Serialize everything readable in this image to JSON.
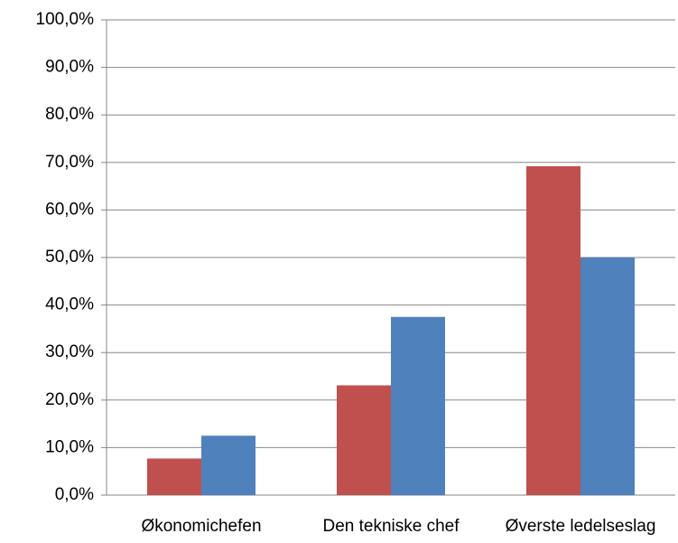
{
  "chart_data": {
    "type": "bar",
    "categories": [
      "Økonomichefen",
      "Den tekniske chef",
      "Øverste ledelseslag"
    ],
    "series": [
      {
        "color": "#c0504d",
        "values": [
          7.7,
          23.1,
          69.2
        ]
      },
      {
        "color": "#4f81bd",
        "values": [
          12.5,
          37.5,
          50.0
        ]
      }
    ],
    "ylim": [
      0,
      100
    ],
    "yticks": [
      {
        "value": 0,
        "label": "0,0%"
      },
      {
        "value": 10,
        "label": "10,0%"
      },
      {
        "value": 20,
        "label": "20,0%"
      },
      {
        "value": 30,
        "label": "30,0%"
      },
      {
        "value": 40,
        "label": "40,0%"
      },
      {
        "value": 50,
        "label": "50,0%"
      },
      {
        "value": 60,
        "label": "60,0%"
      },
      {
        "value": 70,
        "label": "70,0%"
      },
      {
        "value": 80,
        "label": "80,0%"
      },
      {
        "value": 90,
        "label": "90,0%"
      },
      {
        "value": 100,
        "label": "100,0%"
      }
    ],
    "grid": true
  }
}
